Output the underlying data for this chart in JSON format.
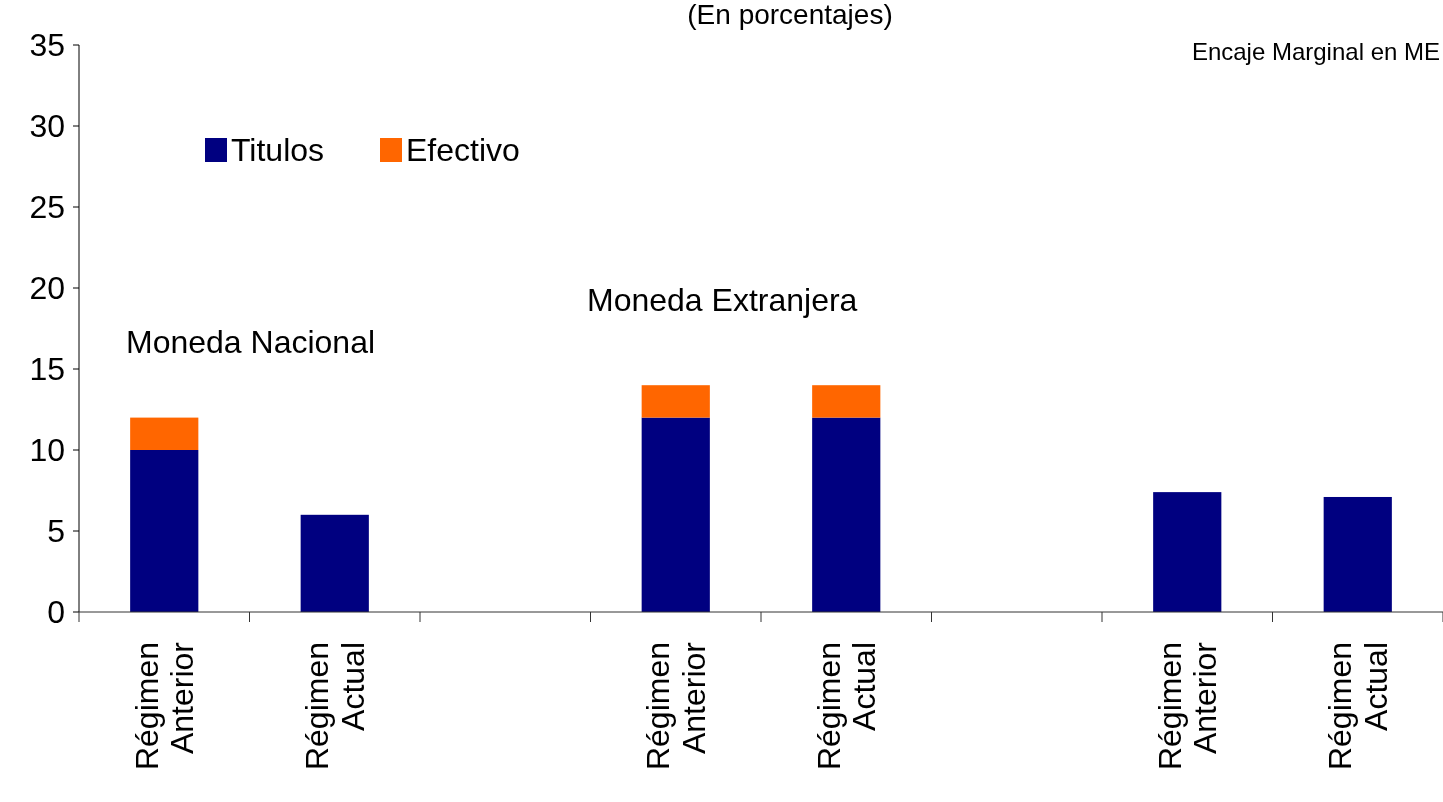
{
  "chart_data": {
    "type": "bar",
    "title": "(En porcentajes)",
    "stacked": true,
    "categories": [
      "Régimen Anterior",
      "Régimen Actual",
      null,
      "Régimen Anterior",
      "Régimen Actual",
      null,
      "Régimen Anterior",
      "Régimen Actual"
    ],
    "series": [
      {
        "name": "Titulos",
        "color": "#000080",
        "values": [
          10,
          6,
          null,
          12,
          12,
          null,
          7.4,
          7.1
        ]
      },
      {
        "name": "Efectivo",
        "color": "#ff6600",
        "values": [
          2,
          0,
          null,
          2,
          2,
          null,
          0,
          0
        ]
      }
    ],
    "ylim": [
      0,
      35
    ],
    "yticks": [
      0,
      5,
      10,
      15,
      20,
      25,
      30,
      35
    ],
    "grid": false,
    "legend": "top left",
    "annotations": [
      "Moneda Nacional",
      "Moneda Extranjera",
      "Encaje Marginal en ME"
    ]
  }
}
